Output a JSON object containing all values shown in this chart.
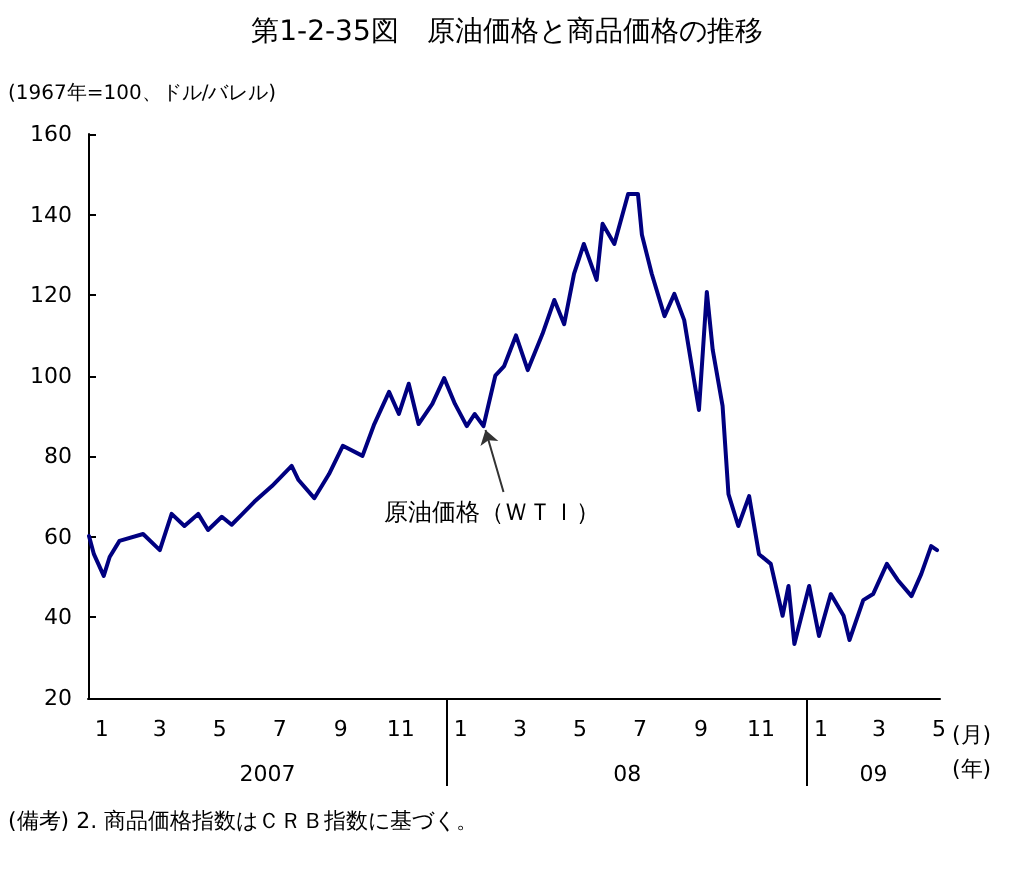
{
  "chart_data": {
    "type": "line",
    "title": "第1-2-35図　原油価格と商品価格の推移",
    "ylabel": "(1967年=100、ドル/バレル)",
    "xlabel": "(月)\n(年)",
    "annotations": [
      {
        "text": "原油価格（ＷＴＩ）",
        "x": "2008-02-07",
        "y": 88
      },
      "2007",
      "08",
      "09",
      "(備考) 2. 商品価格指数はＣＲＢ指数に基づく。"
    ],
    "x": [
      "2007-01-02",
      "2007-01-07",
      "2007-01-17",
      "2007-01-23",
      "2007-02-02",
      "2007-02-26",
      "2007-03-15",
      "2007-03-27",
      "2007-04-09",
      "2007-04-23",
      "2007-05-03",
      "2007-05-17",
      "2007-05-27",
      "2007-06-07",
      "2007-06-19",
      "2007-07-07",
      "2007-07-27",
      "2007-08-03",
      "2007-08-19",
      "2007-09-03",
      "2007-09-17",
      "2007-10-07",
      "2007-10-19",
      "2007-11-03",
      "2007-11-13",
      "2007-11-23",
      "2007-12-03",
      "2007-12-17",
      "2007-12-29",
      "2008-01-09",
      "2008-01-21",
      "2008-01-29",
      "2008-02-07",
      "2008-02-19",
      "2008-02-28",
      "2008-03-11",
      "2008-03-23",
      "2008-04-07",
      "2008-04-19",
      "2008-04-29",
      "2008-05-09",
      "2008-05-19",
      "2008-06-01",
      "2008-06-07",
      "2008-06-19",
      "2008-07-03",
      "2008-07-13",
      "2008-07-17",
      "2008-07-27",
      "2008-08-09",
      "2008-08-19",
      "2008-08-29",
      "2008-09-13",
      "2008-09-21",
      "2008-09-27",
      "2008-10-07",
      "2008-10-13",
      "2008-10-23",
      "2008-11-03",
      "2008-11-13",
      "2008-11-25",
      "2008-12-07",
      "2008-12-13",
      "2008-12-19",
      "2009-01-03",
      "2009-01-13",
      "2009-01-25",
      "2009-02-07",
      "2009-02-13",
      "2009-02-27",
      "2009-03-09",
      "2009-03-23",
      "2009-04-03",
      "2009-04-17",
      "2009-04-27",
      "2009-05-07",
      "2009-05-13"
    ],
    "series": [
      {
        "color": "#000080",
        "values": [
          60.2,
          55.7,
          50.3,
          55,
          59,
          60.7,
          56.7,
          65.7,
          62.7,
          65.7,
          61.7,
          65,
          63,
          65.7,
          68.7,
          72.6,
          77.6,
          74.1,
          69.6,
          75.6,
          82.6,
          80.1,
          88,
          96,
          90.5,
          98,
          88,
          93,
          99.4,
          93,
          87.5,
          90.5,
          87.5,
          100,
          102.4,
          110,
          101.4,
          110.4,
          118.8,
          112.8,
          125.3,
          132.7,
          123.8,
          137.7,
          132.7,
          145.1,
          145.1,
          135,
          125.3,
          114.8,
          120.3,
          113.8,
          91.5,
          120.8,
          106.4,
          92.5,
          70.6,
          62.7,
          70.1,
          55.7,
          53.3,
          40.4,
          47.8,
          33.4,
          47.8,
          35.4,
          45.8,
          40.4,
          34.4,
          44.3,
          45.8,
          53.3,
          49.3,
          45.3,
          50.8,
          57.7,
          56.7
        ]
      }
    ],
    "xlim": [
      "2007-01-01",
      "2009-05-16"
    ],
    "xticks": [
      {
        "value": "2007-01-15",
        "label": "1"
      },
      {
        "value": "2007-03-15",
        "label": "3"
      },
      {
        "value": "2007-05-15",
        "label": "5"
      },
      {
        "value": "2007-07-15",
        "label": "7"
      },
      {
        "value": "2007-09-15",
        "label": "9"
      },
      {
        "value": "2007-11-15",
        "label": "11"
      },
      {
        "value": "2008-01-15",
        "label": "1"
      },
      {
        "value": "2008-03-15",
        "label": "3"
      },
      {
        "value": "2008-05-15",
        "label": "5"
      },
      {
        "value": "2008-07-15",
        "label": "7"
      },
      {
        "value": "2008-09-15",
        "label": "9"
      },
      {
        "value": "2008-11-15",
        "label": "11"
      },
      {
        "value": "2009-01-15",
        "label": "1"
      },
      {
        "value": "2009-03-15",
        "label": "3"
      },
      {
        "value": "2009-05-15",
        "label": "5"
      }
    ],
    "ylim": [
      20,
      160
    ],
    "yticks": [
      20,
      40,
      60,
      80,
      100,
      120,
      140,
      160
    ],
    "grid": false,
    "marker": "none",
    "line_style": "solid"
  }
}
